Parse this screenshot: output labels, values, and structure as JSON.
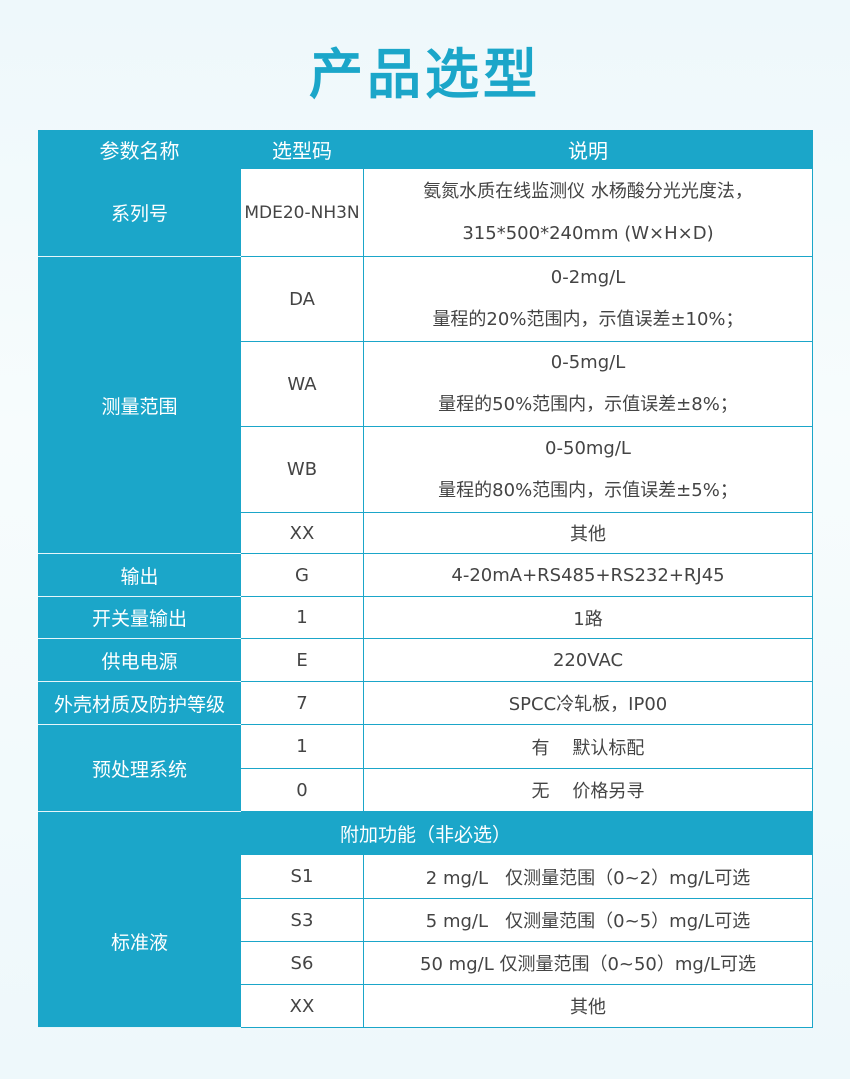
{
  "title": "产品选型",
  "colors": {
    "accent": "#1ba6c9",
    "text": "#444444"
  },
  "headers": [
    "参数名称",
    "选型码",
    "说明"
  ],
  "series": {
    "param": "系列号",
    "code": "MDE20-NH3N",
    "desc": [
      "氨氮水质在线监测仪  水杨酸分光光度法，",
      "315*500*240mm (W×H×D)"
    ]
  },
  "range": {
    "param": "测量范围",
    "rows": [
      {
        "code": "DA",
        "desc": [
          "0-2mg/L",
          "量程的20%范围内，示值误差±10%；"
        ]
      },
      {
        "code": "WA",
        "desc": [
          "0-5mg/L",
          "量程的50%范围内，示值误差±8%；"
        ]
      },
      {
        "code": "WB",
        "desc": [
          "0-50mg/L",
          "量程的80%范围内，示值误差±5%；"
        ]
      },
      {
        "code": "XX",
        "desc": [
          "其他"
        ]
      }
    ]
  },
  "simple_rows": [
    {
      "param": "输出",
      "code": "G",
      "desc": "4-20mA+RS485+RS232+RJ45"
    },
    {
      "param": "开关量输出",
      "code": "1",
      "desc": "1路"
    },
    {
      "param": "供电电源",
      "code": "E",
      "desc": "220VAC"
    },
    {
      "param": "外壳材质及防护等级",
      "code": "7",
      "desc": "SPCC冷轧板，IP00"
    }
  ],
  "pretreat": {
    "param": "预处理系统",
    "rows": [
      {
        "code": "1",
        "desc": "有    默认标配"
      },
      {
        "code": "0",
        "desc": "无    价格另寻"
      }
    ]
  },
  "addon_header": "附加功能（非必选）",
  "standard": {
    "param": "标准液",
    "rows": [
      {
        "code": "S1",
        "desc": "2 mg/L   仅测量范围（0~2）mg/L可选"
      },
      {
        "code": "S3",
        "desc": "5 mg/L   仅测量范围（0~5）mg/L可选"
      },
      {
        "code": "S6",
        "desc": "50 mg/L 仅测量范围（0~50）mg/L可选"
      },
      {
        "code": "XX",
        "desc": "其他"
      }
    ]
  }
}
